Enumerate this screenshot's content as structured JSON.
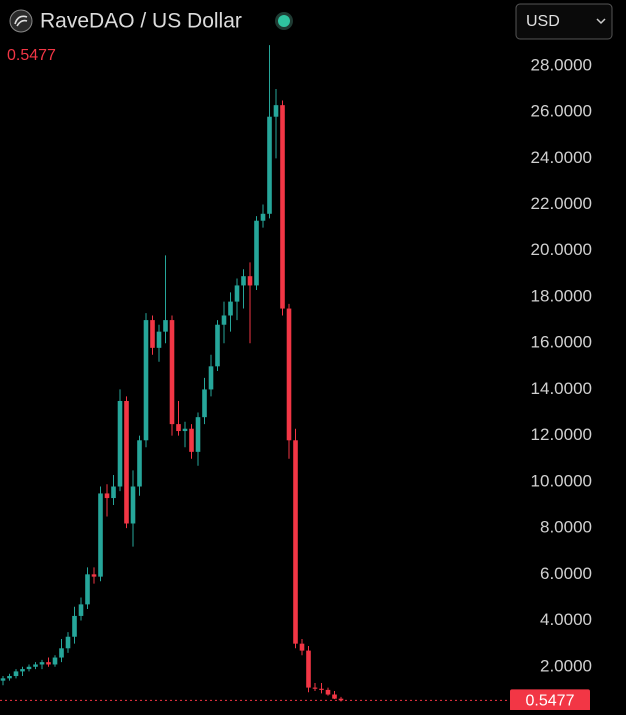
{
  "chart_data": {
    "type": "candlestick",
    "title": "RaveDAO / US Dollar",
    "currency": "USD",
    "last_price": 0.5477,
    "up_color": "#26a69a",
    "down_color": "#f23645",
    "ylim": [
      0.13,
      30.85
    ],
    "yticks": [
      {
        "value": 2,
        "label": "2.0000"
      },
      {
        "value": 4,
        "label": "4.0000"
      },
      {
        "value": 6,
        "label": "6.0000"
      },
      {
        "value": 8,
        "label": "8.0000"
      },
      {
        "value": 10,
        "label": "10.0000"
      },
      {
        "value": 12,
        "label": "12.0000"
      },
      {
        "value": 14,
        "label": "14.0000"
      },
      {
        "value": 16,
        "label": "16.0000"
      },
      {
        "value": 18,
        "label": "18.0000"
      },
      {
        "value": 20,
        "label": "20.0000"
      },
      {
        "value": 22,
        "label": "22.0000"
      },
      {
        "value": 24,
        "label": "24.0000"
      },
      {
        "value": 26,
        "label": "26.0000"
      },
      {
        "value": 28,
        "label": "28.0000"
      }
    ],
    "open": [
      1.4,
      1.5,
      1.6,
      1.8,
      1.9,
      2.0,
      2.1,
      2.2,
      2.1,
      2.4,
      2.8,
      3.3,
      4.2,
      4.7,
      6.0,
      5.9,
      9.5,
      9.3,
      9.8,
      13.5,
      8.2,
      9.8,
      11.8,
      17.0,
      15.8,
      16.5,
      17.0,
      12.5,
      12.2,
      12.3,
      11.3,
      12.8,
      14.0,
      15.0,
      16.8,
      17.2,
      17.8,
      18.5,
      18.9,
      18.5,
      21.3,
      21.6,
      25.8,
      26.3,
      17.5,
      11.8,
      3.0,
      2.7,
      1.1,
      1.05,
      1.0,
      0.8,
      0.62
    ],
    "high": [
      1.6,
      1.7,
      1.9,
      2.0,
      2.1,
      2.2,
      2.3,
      2.4,
      2.5,
      3.2,
      3.5,
      4.6,
      5.0,
      6.3,
      6.3,
      9.8,
      9.9,
      10.3,
      14.0,
      13.7,
      10.5,
      12.0,
      17.3,
      17.2,
      16.8,
      19.8,
      17.2,
      13.5,
      12.6,
      12.5,
      13.0,
      14.5,
      15.5,
      17.0,
      17.8,
      18.2,
      18.8,
      19.2,
      19.5,
      21.5,
      22.0,
      28.9,
      27.0,
      26.5,
      17.7,
      12.3,
      3.2,
      2.9,
      1.3,
      1.3,
      1.1,
      0.95,
      0.7
    ],
    "low": [
      1.2,
      1.4,
      1.5,
      1.6,
      1.8,
      1.9,
      1.9,
      2.0,
      2.0,
      2.2,
      2.6,
      3.0,
      4.0,
      4.5,
      5.6,
      5.7,
      8.5,
      9.0,
      9.6,
      8.0,
      7.2,
      9.4,
      11.5,
      15.5,
      15.2,
      16.0,
      12.0,
      12.0,
      11.5,
      11.0,
      10.7,
      12.5,
      13.7,
      14.8,
      16.0,
      16.5,
      17.0,
      17.5,
      16.0,
      18.3,
      21.0,
      21.4,
      24.0,
      17.2,
      11.0,
      2.8,
      2.5,
      0.9,
      0.95,
      0.85,
      0.75,
      0.6,
      0.5
    ],
    "close": [
      1.5,
      1.6,
      1.8,
      1.9,
      2.0,
      2.1,
      2.2,
      2.1,
      2.4,
      2.8,
      3.3,
      4.2,
      4.7,
      6.0,
      5.9,
      9.5,
      9.3,
      9.8,
      13.5,
      8.2,
      9.8,
      11.8,
      17.0,
      15.8,
      16.5,
      17.0,
      12.5,
      12.2,
      12.3,
      11.3,
      12.8,
      14.0,
      15.0,
      16.8,
      17.2,
      17.8,
      18.5,
      18.9,
      18.5,
      21.3,
      21.6,
      25.8,
      26.3,
      17.5,
      11.8,
      3.0,
      2.7,
      1.1,
      1.05,
      1.0,
      0.8,
      0.62,
      0.5477
    ]
  }
}
